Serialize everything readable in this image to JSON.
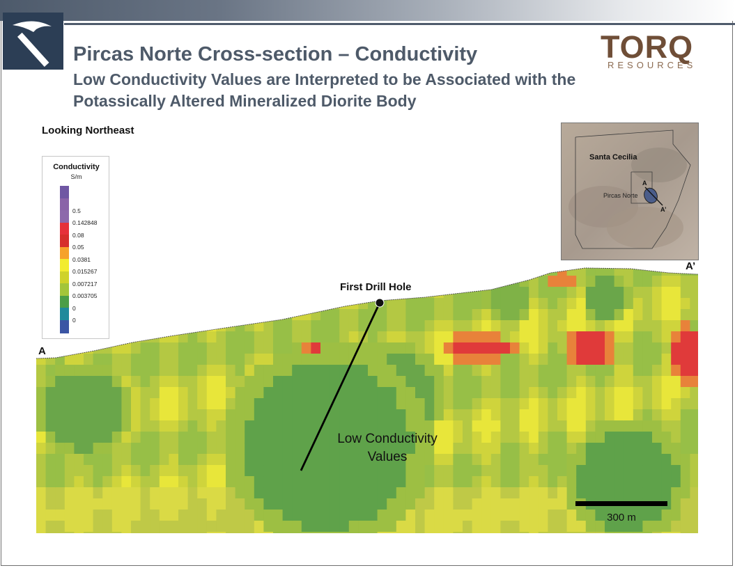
{
  "header": {
    "title": "Pircas Norte Cross-section –  Conductivity",
    "subtitle": "Low Conductivity Values are Interpreted to be Associated with the Potassically Altered Mineralized Diorite Body",
    "company_name": "TORQ",
    "company_sub": "RESOURCES",
    "logo_icon": "pickaxe-icon"
  },
  "view_label": "Looking Northeast",
  "legend": {
    "title": "Conductivity",
    "unit": "S/m",
    "items": [
      {
        "color": "#6f57a3",
        "label": ""
      },
      {
        "color": "#8a63a8",
        "label": "0.5"
      },
      {
        "color": "#8d68ab",
        "label": "0.142848"
      },
      {
        "color": "#e6313a",
        "label": "0.08"
      },
      {
        "color": "#d62f2c",
        "label": "0.05"
      },
      {
        "color": "#f6a22b",
        "label": "0.0381"
      },
      {
        "color": "#f2ec2f",
        "label": "0.015267"
      },
      {
        "color": "#cfd22a",
        "label": "0.007217"
      },
      {
        "color": "#a3c53a",
        "label": "0.003705"
      },
      {
        "color": "#4b9e47",
        "label": "0"
      },
      {
        "color": "#1f8a9b",
        "label": "0"
      },
      {
        "color": "#3b55a4",
        "label": ""
      }
    ]
  },
  "inset": {
    "region_label": "Santa Cecilia",
    "target_label": "Pircas Norte",
    "point_a": "A",
    "point_a_prime": "A’"
  },
  "section": {
    "end_a": "A",
    "end_a_prime": "A’",
    "drill_label": "First Drill Hole",
    "annotation_line1": "Low Conductivity",
    "annotation_line2": "Values",
    "scale_label": "300 m"
  }
}
